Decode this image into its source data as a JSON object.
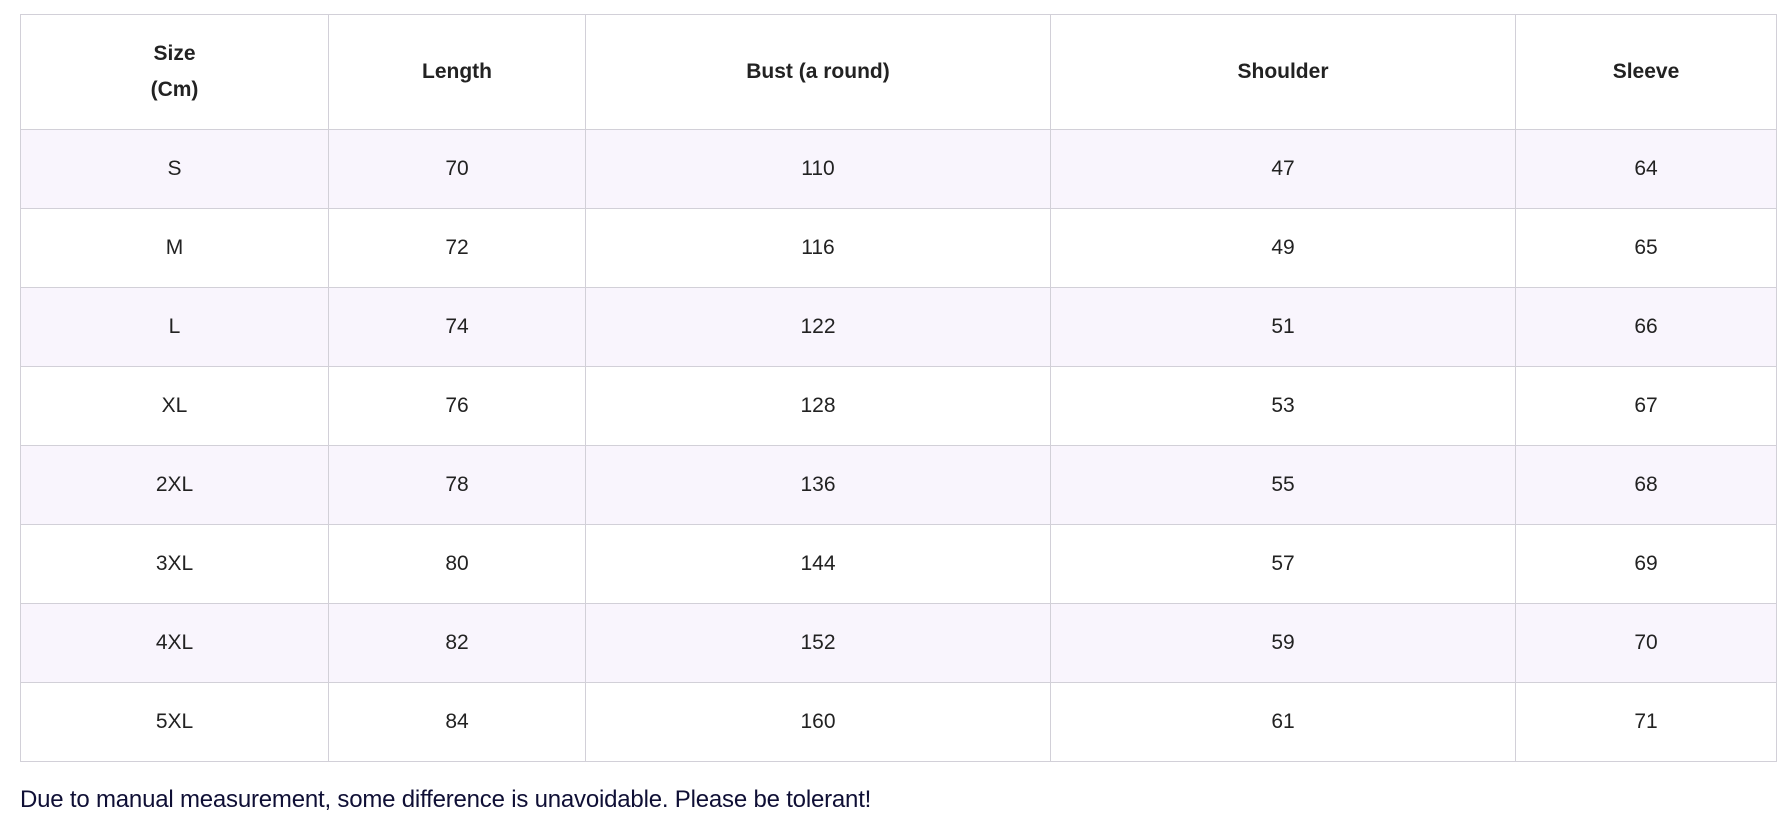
{
  "table": {
    "headers": [
      "Size\n(Cm)",
      "Length",
      "Bust (a round)",
      "Shoulder",
      "Sleeve"
    ],
    "header_lines": [
      [
        "Size",
        "(Cm)"
      ]
    ],
    "rows": [
      [
        "S",
        "70",
        "110",
        "47",
        "64"
      ],
      [
        "M",
        "72",
        "116",
        "49",
        "65"
      ],
      [
        "L",
        "74",
        "122",
        "51",
        "66"
      ],
      [
        "XL",
        "76",
        "128",
        "53",
        "67"
      ],
      [
        "2XL",
        "78",
        "136",
        "55",
        "68"
      ],
      [
        "3XL",
        "80",
        "144",
        "57",
        "69"
      ],
      [
        "4XL",
        "82",
        "152",
        "59",
        "70"
      ],
      [
        "5XL",
        "84",
        "160",
        "61",
        "71"
      ]
    ]
  },
  "note": "Due to manual measurement, some difference is unavoidable. Please be tolerant!",
  "colors": {
    "row_stripe": "#f9f5fd",
    "border": "#d2d0d8",
    "note_text": "#0f0f35"
  }
}
